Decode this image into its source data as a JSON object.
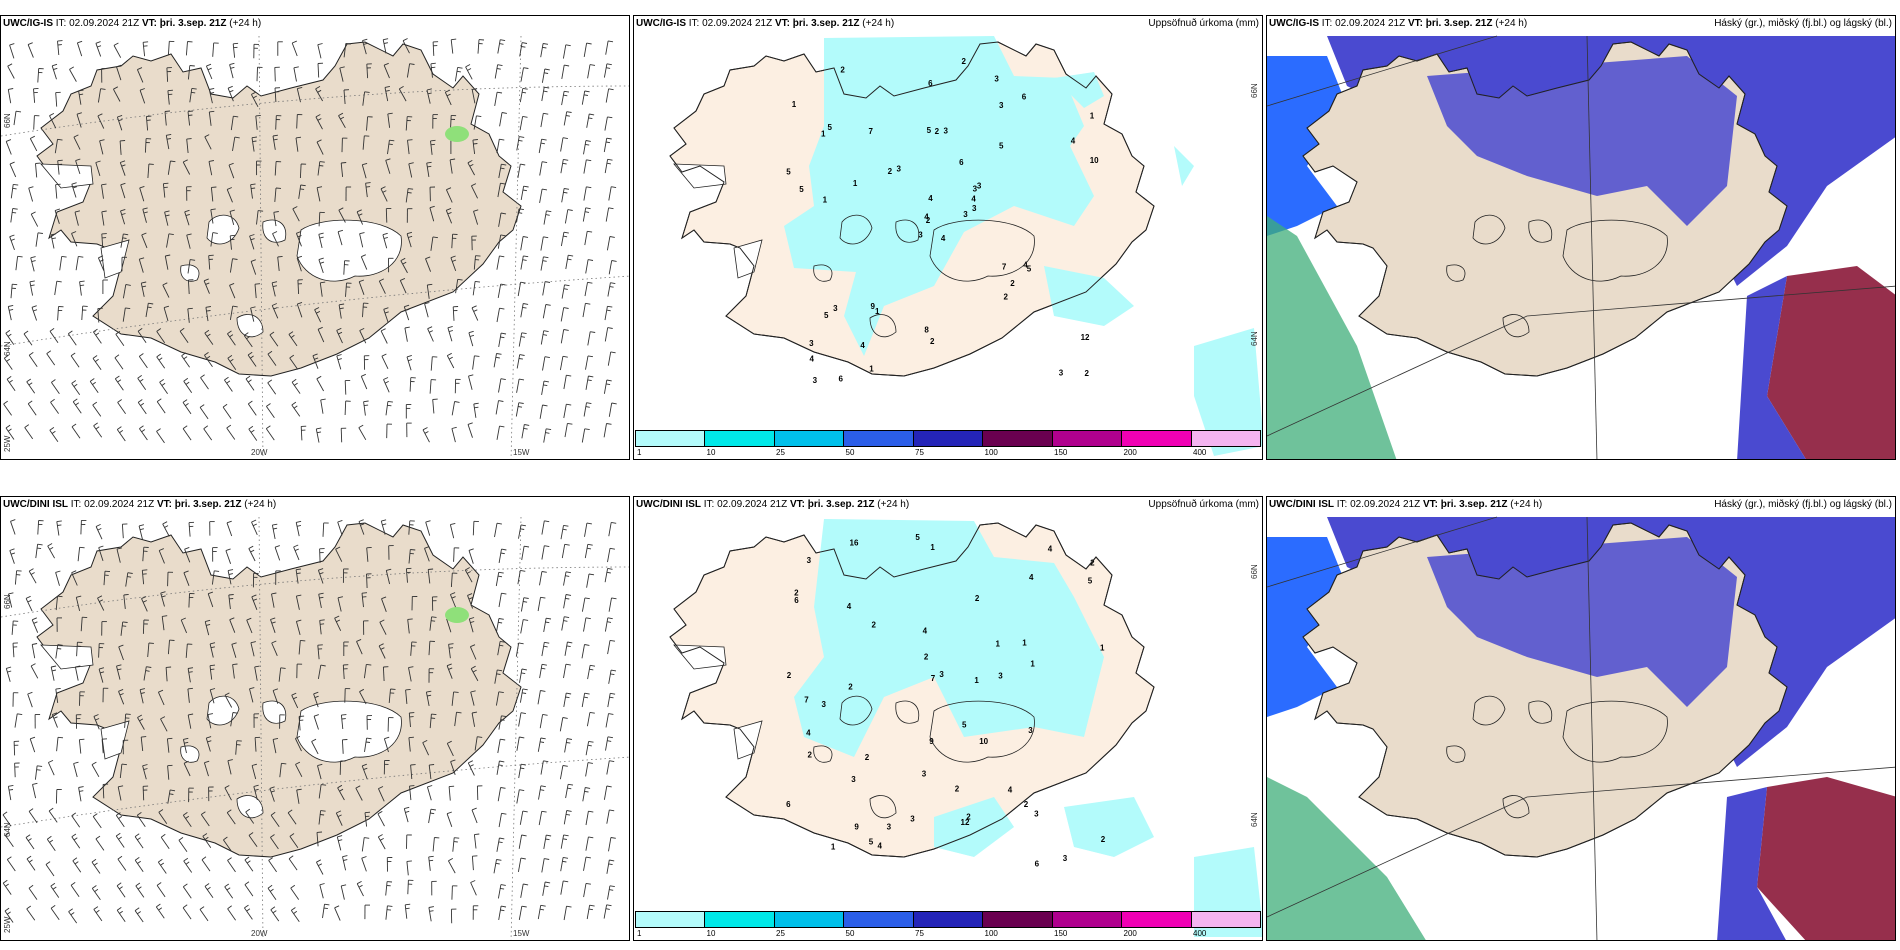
{
  "rows": [
    {
      "model": "UWC/IG-IS",
      "panels": [
        {
          "kind": "wind",
          "title": {
            "model": "UWC/IG-IS",
            "it": "IT: 02.09.2024 21Z",
            "vt": "VT: þri. 3.sep. 21Z",
            "lead": "(+24 h)"
          },
          "right": "",
          "lon_labels": [
            "20W",
            "15W"
          ],
          "lat_labels": [
            "66N",
            "64N",
            "25W"
          ]
        },
        {
          "kind": "precip",
          "title": {
            "model": "UWC/IG-IS",
            "it": "IT: 02.09.2024 21Z",
            "vt": "VT: þri. 3.sep. 21Z",
            "lead": "(+24 h)"
          },
          "right": "Uppsöfnuð úrkoma (mm)",
          "lat_labels": [
            "66N",
            "64N"
          ]
        },
        {
          "kind": "cloud",
          "title": {
            "model": "UWC/IG-IS",
            "it": "IT: 02.09.2024 21Z",
            "vt": "VT: þri. 3.sep. 21Z",
            "lead": "(+24 h)"
          },
          "right": "Háský (gr.), miðský (fj.bl.) og lágský (bl.)"
        }
      ]
    },
    {
      "model": "UWC/DINI ISL",
      "panels": [
        {
          "kind": "wind",
          "title": {
            "model": "UWC/DINI ISL",
            "it": "IT: 02.09.2024 21Z",
            "vt": "VT: þri. 3.sep. 21Z",
            "lead": "(+24 h)"
          },
          "right": "",
          "lon_labels": [
            "20W",
            "15W"
          ],
          "lat_labels": [
            "66N",
            "64N",
            "25W"
          ]
        },
        {
          "kind": "precip",
          "title": {
            "model": "UWC/DINI ISL",
            "it": "IT: 02.09.2024 21Z",
            "vt": "VT: þri. 3.sep. 21Z",
            "lead": "(+24 h)"
          },
          "right": "Uppsöfnuð úrkoma (mm)",
          "lat_labels": [
            "66N",
            "64N"
          ]
        },
        {
          "kind": "cloud",
          "title": {
            "model": "UWC/DINI ISL",
            "it": "IT: 02.09.2024 21Z",
            "vt": "VT: þri. 3.sep. 21Z",
            "lead": "(+24 h)"
          },
          "right": "Háský (gr.), miðský (fj.bl.) og lágský (bl.)"
        }
      ]
    }
  ],
  "colorbar": {
    "labels": [
      "1",
      "10",
      "25",
      "50",
      "75",
      "100",
      "150",
      "200",
      "400"
    ],
    "colors": [
      "#b3fbfb",
      "#00e8e8",
      "#00c0ea",
      "#2b5ee8",
      "#2424b8",
      "#6a0050",
      "#b0008e",
      "#f000b4",
      "#f4b4f0"
    ]
  },
  "precip_values": [
    [
      "4",
      "1",
      "2",
      "3",
      "3",
      "1",
      "3",
      "3",
      "3",
      "3",
      "2",
      "2",
      "1",
      "1",
      "3",
      "5",
      "6",
      "5",
      "6",
      "3",
      "3",
      "4",
      "4",
      "2",
      "3",
      "5",
      "5",
      "6",
      "5",
      "7",
      "10",
      "4",
      "8",
      "4",
      "7",
      "6",
      "9",
      "3",
      "12",
      "4",
      "2",
      "2",
      "1",
      "2",
      "1",
      "5",
      "4",
      "3",
      "2",
      "3",
      "5",
      "4",
      "1",
      "2"
    ],
    [
      "2",
      "1",
      "1",
      "2",
      "2",
      "3",
      "3",
      "2",
      "4",
      "4",
      "3",
      "3",
      "5",
      "6",
      "4",
      "3",
      "2",
      "7",
      "5",
      "3",
      "4",
      "3",
      "5",
      "2",
      "9",
      "7",
      "10",
      "16",
      "4",
      "12",
      "4",
      "6",
      "1",
      "1",
      "5",
      "2",
      "1",
      "3",
      "3",
      "2",
      "2",
      "3",
      "2",
      "1",
      "9",
      "2",
      "4",
      "6",
      "3",
      "2",
      "1",
      "2"
    ]
  ],
  "colors": {
    "land": "#e9dccb",
    "land_precip": "#fcefe2",
    "ice": "#ffffff",
    "precip_light": "#b3fbfb",
    "cloud_mid": "#4a4ad0",
    "cloud_low": "#2b6cff",
    "cloud_high_green": "#3fae7a",
    "cloud_red": "#8b1838"
  }
}
